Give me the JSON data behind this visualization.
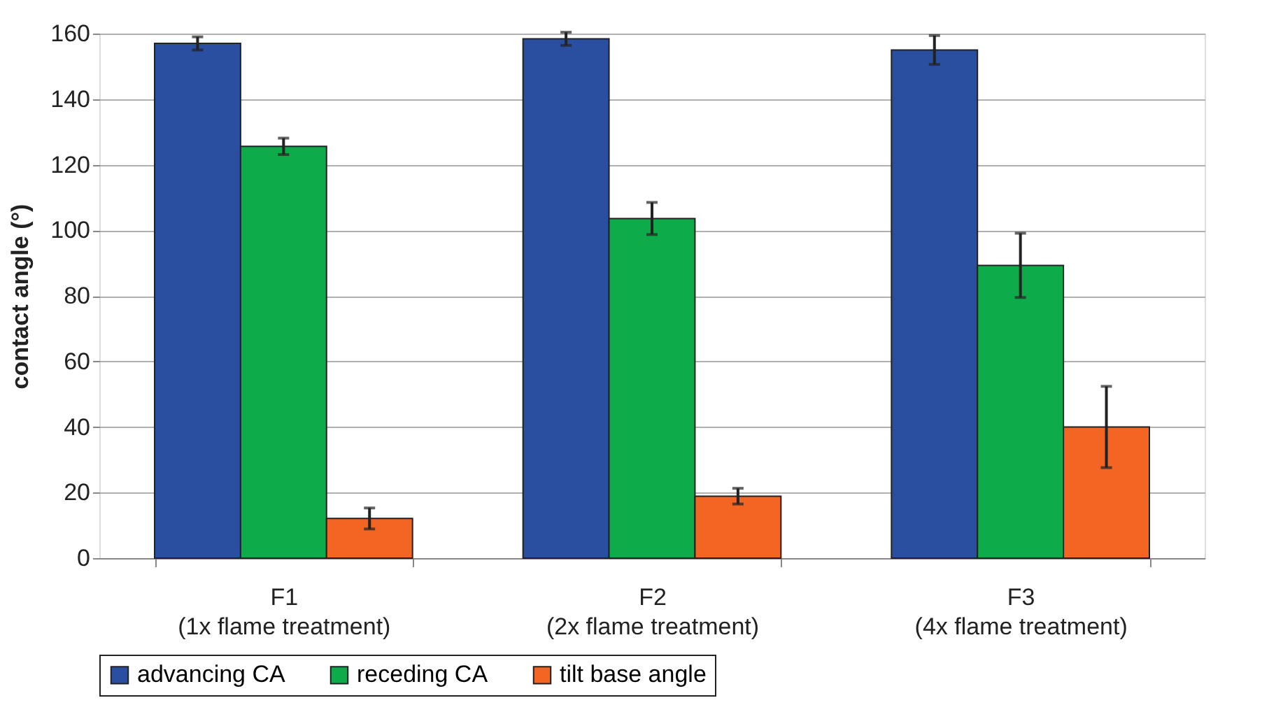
{
  "chart_data": {
    "type": "bar",
    "ylabel": "contact angle (°)",
    "categories": [
      "F1\n(1x flame treatment)",
      "F2\n(2x flame treatment)",
      "F3\n(4x flame treatment)"
    ],
    "series": [
      {
        "name": "advancing CA",
        "color": "#2a4fa0",
        "values": [
          157,
          158.4,
          155
        ],
        "errors": [
          2,
          2,
          4.4
        ]
      },
      {
        "name": "receding CA",
        "color": "#0eab4a",
        "values": [
          125.6,
          103.6,
          89.3
        ],
        "errors": [
          2.5,
          4.9,
          9.8
        ]
      },
      {
        "name": "tilt base angle",
        "color": "#f26522",
        "values": [
          12.1,
          18.9,
          40
        ],
        "errors": [
          3.2,
          2.4,
          12.4
        ]
      }
    ],
    "ylim": [
      0,
      160
    ],
    "yticks": [
      0,
      20,
      40,
      60,
      80,
      100,
      120,
      140,
      160
    ],
    "grid": "y",
    "legend": "bottom"
  }
}
